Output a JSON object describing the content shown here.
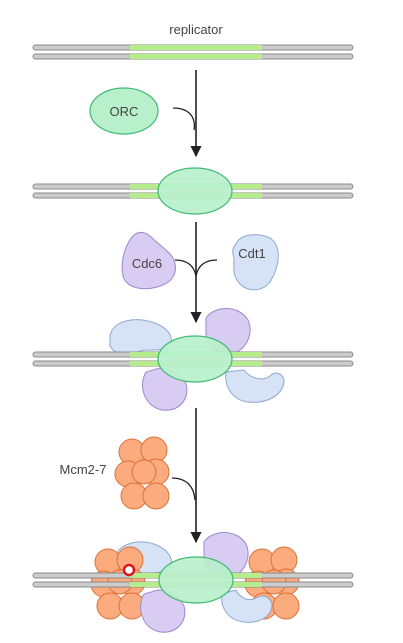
{
  "diagram": {
    "labels": {
      "replicator": "replicator",
      "orc": "ORC",
      "cdc6": "Cdc6",
      "cdt1": "Cdt1",
      "mcm": "Mcm2-7"
    },
    "colors": {
      "dna_strand": "#c8c8c8",
      "dna_outline": "#8a8a8a",
      "replicator_region": "#b6ec8c",
      "orc_fill": "#b8f0cc",
      "orc_stroke": "#3cba72",
      "cdc6_fill": "#d9ccf2",
      "cdc6_stroke": "#9c88cc",
      "cdt1_fill": "#d6e2f6",
      "cdt1_stroke": "#8ea8d0",
      "mcm_fill": "#fbab7e",
      "mcm_stroke": "#df6f34",
      "arrow": "#222222",
      "origin_marker": "#e0101c"
    }
  }
}
